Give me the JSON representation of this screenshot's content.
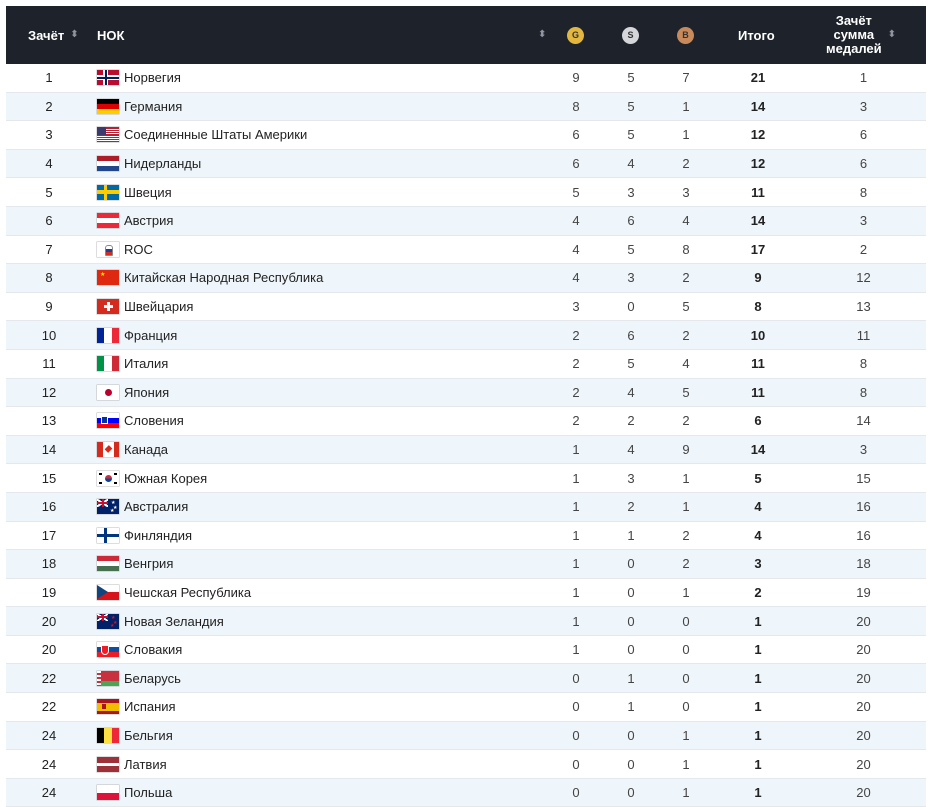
{
  "header": {
    "rank": "Зачёт",
    "nok": "НОК",
    "gold": "G",
    "silver": "S",
    "bronze": "B",
    "total": "Итого",
    "sum_line1": "Зачёт",
    "sum_line2": "сумма",
    "sum_line3": "медалей"
  },
  "rows": [
    {
      "rank": "1",
      "country": "Норвегия",
      "flag": "no",
      "g": "9",
      "s": "5",
      "b": "7",
      "total": "21",
      "sum": "1"
    },
    {
      "rank": "2",
      "country": "Германия",
      "flag": "de",
      "g": "8",
      "s": "5",
      "b": "1",
      "total": "14",
      "sum": "3"
    },
    {
      "rank": "3",
      "country": "Соединенные Штаты Америки",
      "flag": "us",
      "g": "6",
      "s": "5",
      "b": "1",
      "total": "12",
      "sum": "6"
    },
    {
      "rank": "4",
      "country": "Нидерланды",
      "flag": "nl",
      "g": "6",
      "s": "4",
      "b": "2",
      "total": "12",
      "sum": "6"
    },
    {
      "rank": "5",
      "country": "Швеция",
      "flag": "se",
      "g": "5",
      "s": "3",
      "b": "3",
      "total": "11",
      "sum": "8"
    },
    {
      "rank": "6",
      "country": "Австрия",
      "flag": "at",
      "g": "4",
      "s": "6",
      "b": "4",
      "total": "14",
      "sum": "3"
    },
    {
      "rank": "7",
      "country": "ROC",
      "flag": "roc",
      "g": "4",
      "s": "5",
      "b": "8",
      "total": "17",
      "sum": "2"
    },
    {
      "rank": "8",
      "country": "Китайская Народная Республика",
      "flag": "cn",
      "g": "4",
      "s": "3",
      "b": "2",
      "total": "9",
      "sum": "12"
    },
    {
      "rank": "9",
      "country": "Швейцария",
      "flag": "ch",
      "g": "3",
      "s": "0",
      "b": "5",
      "total": "8",
      "sum": "13"
    },
    {
      "rank": "10",
      "country": "Франция",
      "flag": "fr",
      "g": "2",
      "s": "6",
      "b": "2",
      "total": "10",
      "sum": "11"
    },
    {
      "rank": "11",
      "country": "Италия",
      "flag": "it",
      "g": "2",
      "s": "5",
      "b": "4",
      "total": "11",
      "sum": "8"
    },
    {
      "rank": "12",
      "country": "Япония",
      "flag": "jp",
      "g": "2",
      "s": "4",
      "b": "5",
      "total": "11",
      "sum": "8"
    },
    {
      "rank": "13",
      "country": "Словения",
      "flag": "si",
      "g": "2",
      "s": "2",
      "b": "2",
      "total": "6",
      "sum": "14"
    },
    {
      "rank": "14",
      "country": "Канада",
      "flag": "ca",
      "g": "1",
      "s": "4",
      "b": "9",
      "total": "14",
      "sum": "3"
    },
    {
      "rank": "15",
      "country": "Южная Корея",
      "flag": "kr",
      "g": "1",
      "s": "3",
      "b": "1",
      "total": "5",
      "sum": "15"
    },
    {
      "rank": "16",
      "country": "Австралия",
      "flag": "au",
      "g": "1",
      "s": "2",
      "b": "1",
      "total": "4",
      "sum": "16"
    },
    {
      "rank": "17",
      "country": "Финляндия",
      "flag": "fi",
      "g": "1",
      "s": "1",
      "b": "2",
      "total": "4",
      "sum": "16"
    },
    {
      "rank": "18",
      "country": "Венгрия",
      "flag": "hu",
      "g": "1",
      "s": "0",
      "b": "2",
      "total": "3",
      "sum": "18"
    },
    {
      "rank": "19",
      "country": "Чешская Республика",
      "flag": "cz",
      "g": "1",
      "s": "0",
      "b": "1",
      "total": "2",
      "sum": "19"
    },
    {
      "rank": "20",
      "country": "Новая Зеландия",
      "flag": "nz",
      "g": "1",
      "s": "0",
      "b": "0",
      "total": "1",
      "sum": "20"
    },
    {
      "rank": "20",
      "country": "Словакия",
      "flag": "sk",
      "g": "1",
      "s": "0",
      "b": "0",
      "total": "1",
      "sum": "20"
    },
    {
      "rank": "22",
      "country": "Беларусь",
      "flag": "by",
      "g": "0",
      "s": "1",
      "b": "0",
      "total": "1",
      "sum": "20"
    },
    {
      "rank": "22",
      "country": "Испания",
      "flag": "es",
      "g": "0",
      "s": "1",
      "b": "0",
      "total": "1",
      "sum": "20"
    },
    {
      "rank": "24",
      "country": "Бельгия",
      "flag": "be",
      "g": "0",
      "s": "0",
      "b": "1",
      "total": "1",
      "sum": "20"
    },
    {
      "rank": "24",
      "country": "Латвия",
      "flag": "lv",
      "g": "0",
      "s": "0",
      "b": "1",
      "total": "1",
      "sum": "20"
    },
    {
      "rank": "24",
      "country": "Польша",
      "flag": "pl",
      "g": "0",
      "s": "0",
      "b": "1",
      "total": "1",
      "sum": "20"
    }
  ]
}
